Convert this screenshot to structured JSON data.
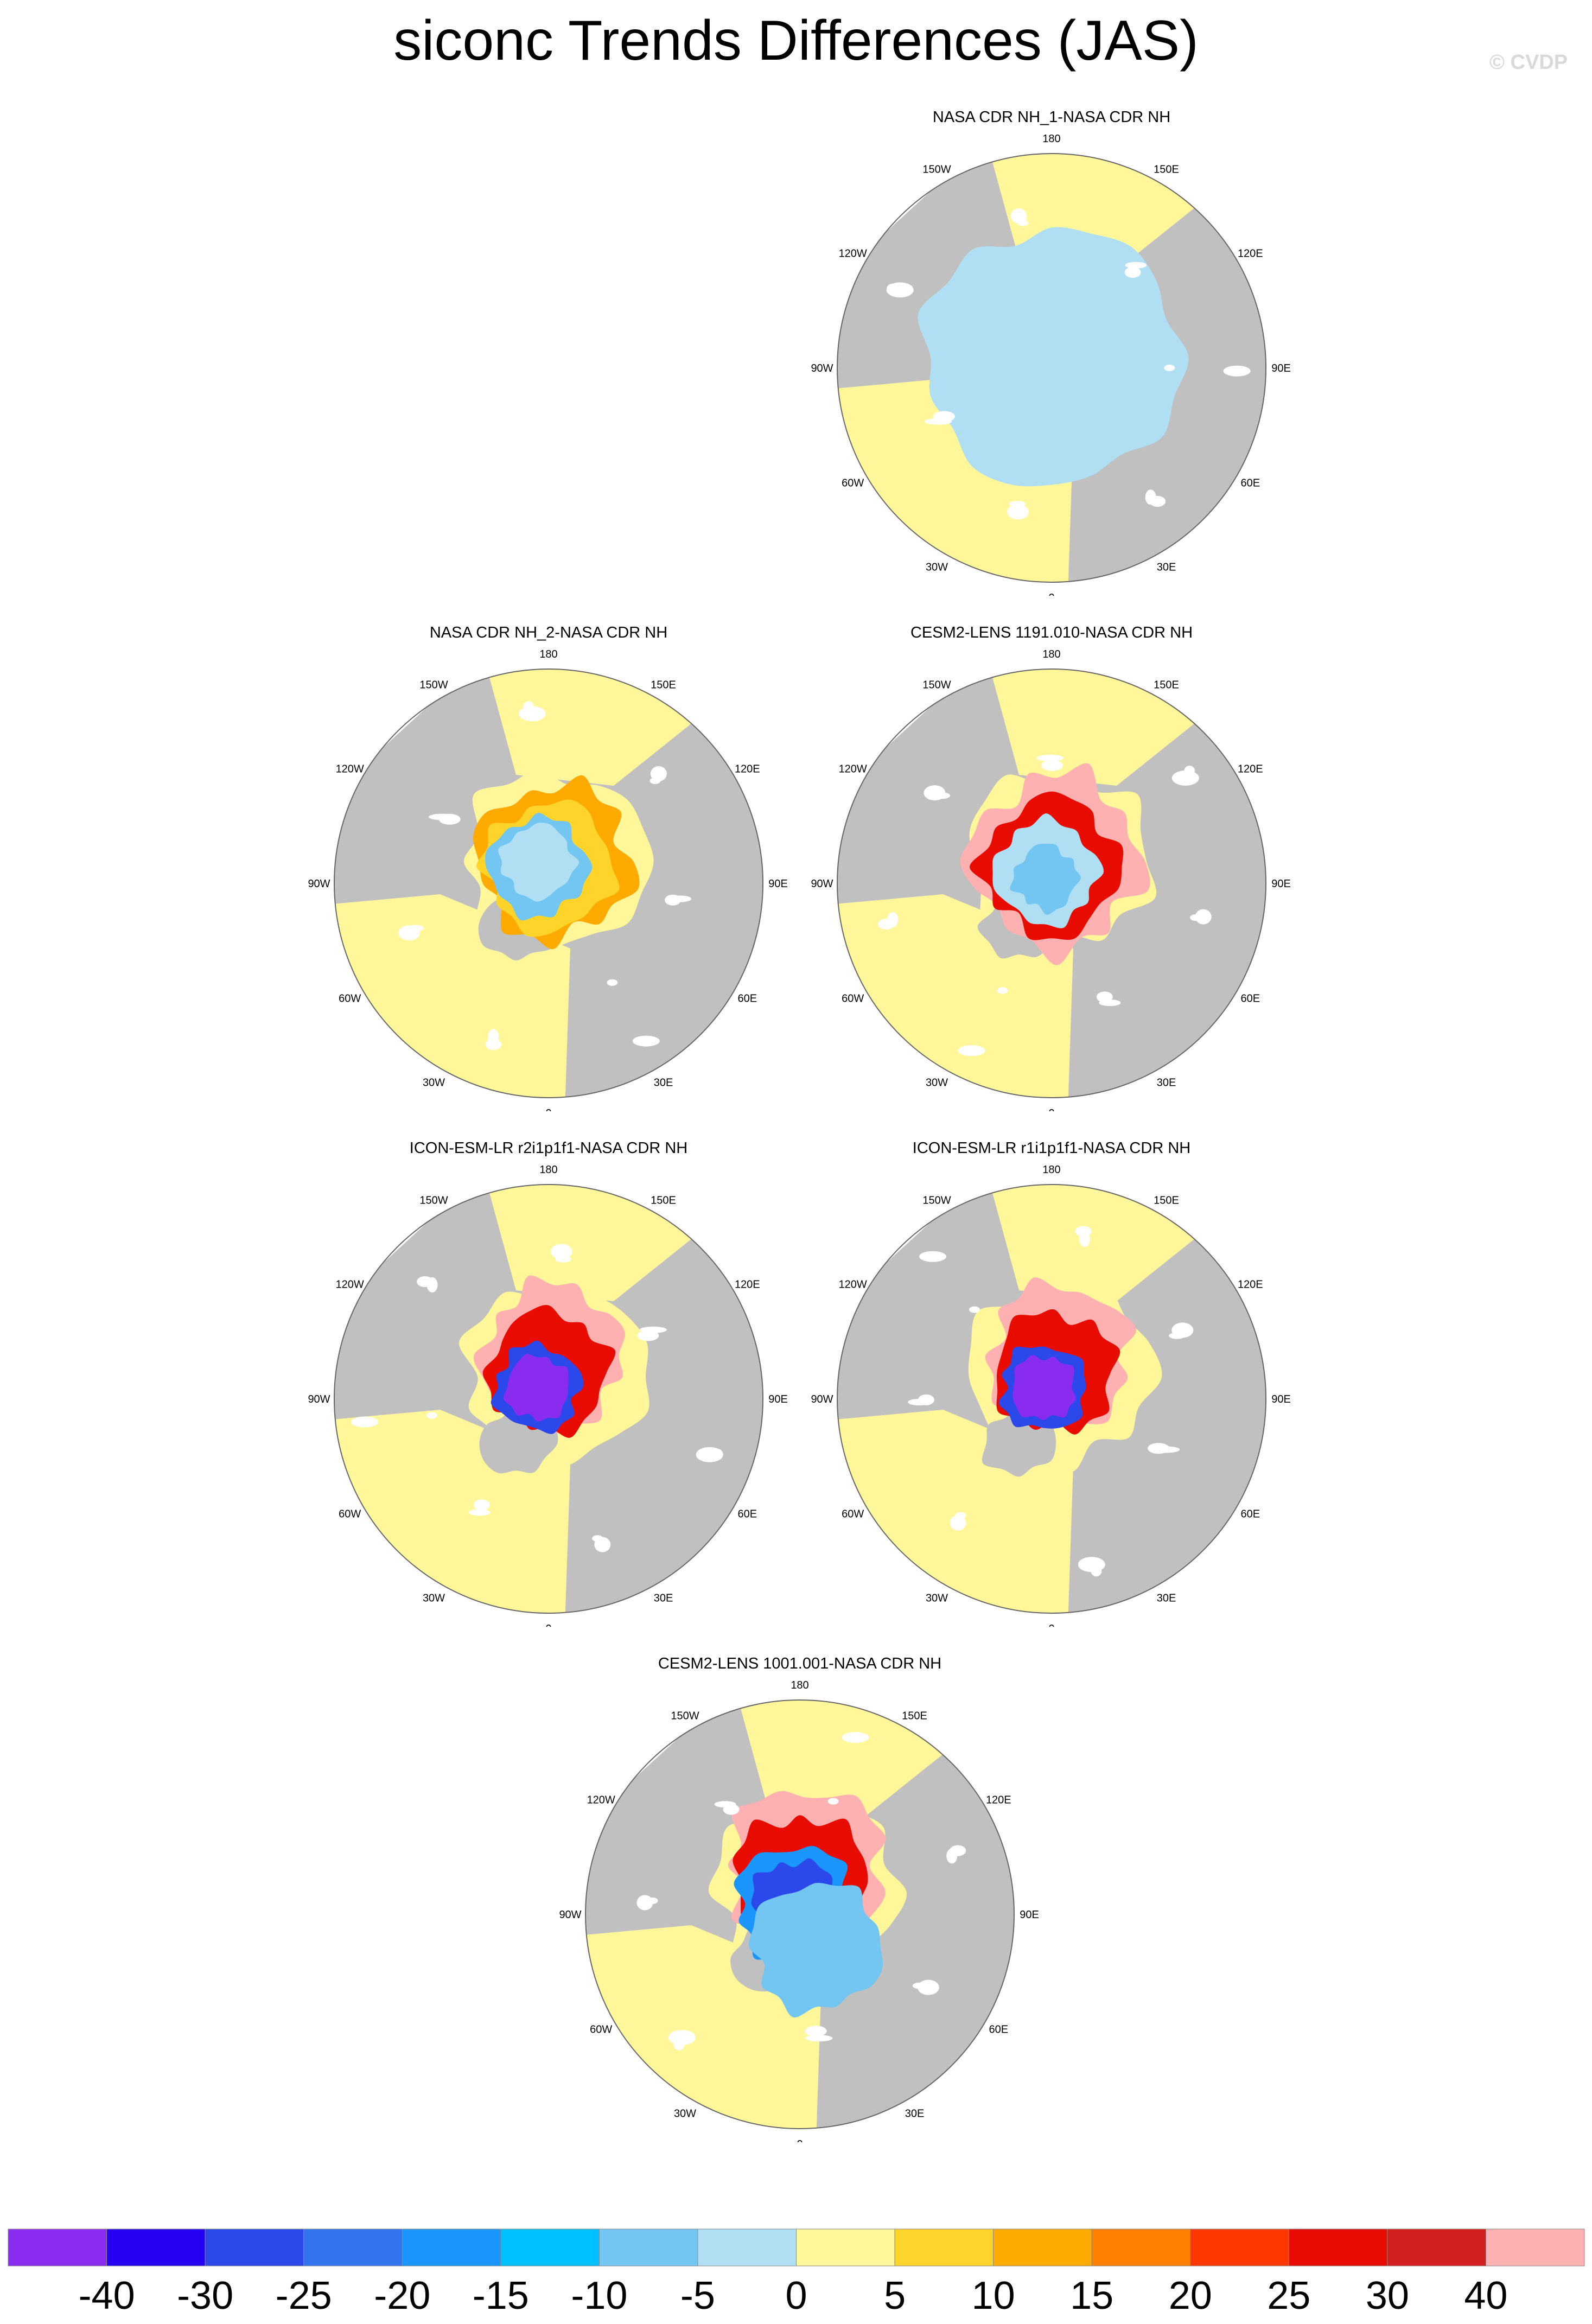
{
  "figure": {
    "title": "siconc Trends Differences (JAS)",
    "watermark": "© CVDP"
  },
  "panels": [
    {
      "title": "NASA CDR NH_1-NASA CDR NH"
    },
    {
      "title": "NASA CDR NH_2-NASA CDR NH"
    },
    {
      "title": "CESM2-LENS 1191.010-NASA CDR NH"
    },
    {
      "title": "ICON-ESM-LR r2i1p1f1-NASA CDR NH"
    },
    {
      "title": "ICON-ESM-LR r1i1p1f1-NASA CDR NH"
    },
    {
      "title": "CESM2-LENS 1001.001-NASA CDR NH"
    }
  ],
  "longitude_labels": [
    "180",
    "150E",
    "120E",
    "90E",
    "60E",
    "30E",
    "0",
    "30W",
    "60W",
    "90W",
    "120W",
    "150W"
  ],
  "colors": {
    "land": "#c0c0c0",
    "ocean_fill": "#fff799",
    "no_data": "#ffffff"
  },
  "chart_data": {
    "type": "heatmap",
    "projection": "north polar stereographic",
    "colorbar": {
      "labels": [
        "-40",
        "-30",
        "-25",
        "-20",
        "-15",
        "-10",
        "-5",
        "0",
        "5",
        "10",
        "15",
        "20",
        "25",
        "30",
        "40"
      ],
      "colors": [
        "#8a2cf0",
        "#2600f2",
        "#2b48ea",
        "#3174ee",
        "#1b96ff",
        "#00bfff",
        "#73c6f1",
        "#b0dff4",
        "#fff799",
        "#ffd42a",
        "#ffaa00",
        "#ff7f00",
        "#ff3700",
        "#e80c00",
        "#d21e1e",
        "#ffb0b0"
      ]
    }
  }
}
